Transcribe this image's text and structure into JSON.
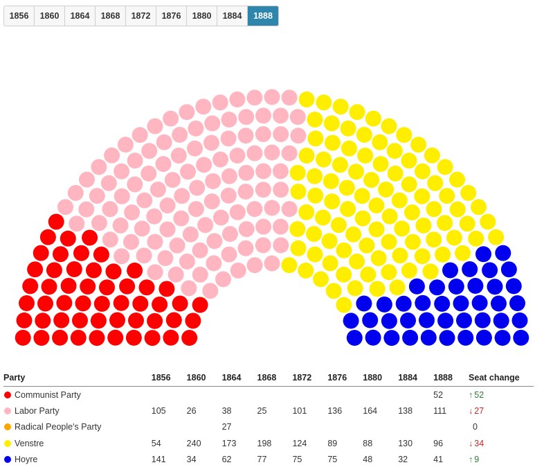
{
  "tabs": [
    "1856",
    "1860",
    "1864",
    "1868",
    "1872",
    "1876",
    "1880",
    "1884",
    "1888"
  ],
  "active_tab": "1888",
  "table": {
    "headers": {
      "party": "Party",
      "years": [
        "1856",
        "1860",
        "1864",
        "1868",
        "1872",
        "1876",
        "1880",
        "1884",
        "1888"
      ],
      "change": "Seat change"
    },
    "rows": [
      {
        "party": "Communist Party",
        "color": "#ff0000",
        "values": [
          "",
          "",
          "",
          "",
          "",
          "",
          "",
          "",
          "52"
        ],
        "change": {
          "arrow": "↑",
          "value": "52",
          "dir": "up"
        }
      },
      {
        "party": "Labor Party",
        "color": "#ffb6c1",
        "values": [
          "105",
          "26",
          "38",
          "25",
          "101",
          "136",
          "164",
          "138",
          "111"
        ],
        "change": {
          "arrow": "↓",
          "value": "27",
          "dir": "down"
        }
      },
      {
        "party": "Radical People's Party",
        "color": "#ffa500",
        "values": [
          "",
          "",
          "27",
          "",
          "",
          "",
          "",
          "",
          ""
        ],
        "change": {
          "arrow": "",
          "value": "0",
          "dir": "none"
        }
      },
      {
        "party": "Venstre",
        "color": "#ffee00",
        "values": [
          "54",
          "240",
          "173",
          "198",
          "124",
          "89",
          "88",
          "130",
          "96"
        ],
        "change": {
          "arrow": "↓",
          "value": "34",
          "dir": "down"
        }
      },
      {
        "party": "Hoyre",
        "color": "#0000ee",
        "values": [
          "141",
          "34",
          "62",
          "77",
          "75",
          "75",
          "48",
          "32",
          "41"
        ],
        "change": {
          "arrow": "↑",
          "value": "9",
          "dir": "up"
        }
      }
    ]
  },
  "chart_data": {
    "type": "parliament",
    "year": "1888",
    "total_seats": 300,
    "seats": [
      {
        "party": "Communist Party",
        "seats": 52,
        "color": "#ff0000"
      },
      {
        "party": "Labor Party",
        "seats": 111,
        "color": "#ffb6c1"
      },
      {
        "party": "Venstre",
        "seats": 96,
        "color": "#ffee00"
      },
      {
        "party": "Hoyre",
        "seats": 41,
        "color": "#0000ee"
      }
    ]
  }
}
